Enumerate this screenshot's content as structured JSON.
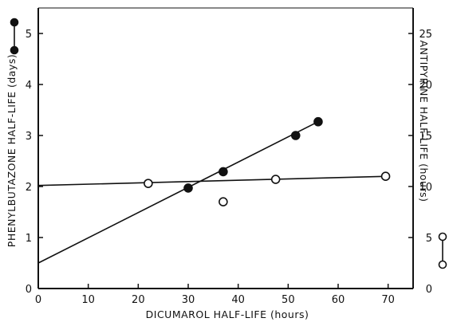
{
  "chart_data": {
    "type": "scatter",
    "xlabel": "DICUMAROL HALF-LIFE (hours)",
    "ylabel_left": "PHENYLBUTAZONE HALF-LIFE (days)",
    "ylabel_right": "ANTIPYRINE HALF-LIFE (hours)",
    "xlim": [
      0,
      75
    ],
    "ylim_left": [
      0,
      5.5
    ],
    "ylim_right": [
      0,
      27.5
    ],
    "x_ticks": [
      0,
      10,
      20,
      30,
      40,
      50,
      60,
      70
    ],
    "y_left_ticks": [
      0,
      1,
      2,
      3,
      4,
      5
    ],
    "y_right_ticks": [
      0,
      5,
      10,
      15,
      20,
      25
    ],
    "grid": false,
    "legend": "markers beside the y-axes: filled circle = left axis, open circle = right axis",
    "series": [
      {
        "marker": "filled-circle",
        "axis": "left",
        "color": "#111111",
        "points": [
          [
            30,
            1.97
          ],
          [
            37,
            2.29
          ],
          [
            51.5,
            3.0
          ],
          [
            56,
            3.27
          ]
        ],
        "fit_line": [
          [
            0,
            0.5
          ],
          [
            56,
            3.27
          ]
        ]
      },
      {
        "marker": "open-circle",
        "axis": "right",
        "color": "#111111",
        "points": [
          [
            22,
            10.3
          ],
          [
            37,
            8.5
          ],
          [
            47.5,
            10.7
          ],
          [
            69.5,
            11.0
          ]
        ],
        "fit_line": [
          [
            0,
            10.1
          ],
          [
            70,
            11.0
          ]
        ]
      }
    ]
  }
}
